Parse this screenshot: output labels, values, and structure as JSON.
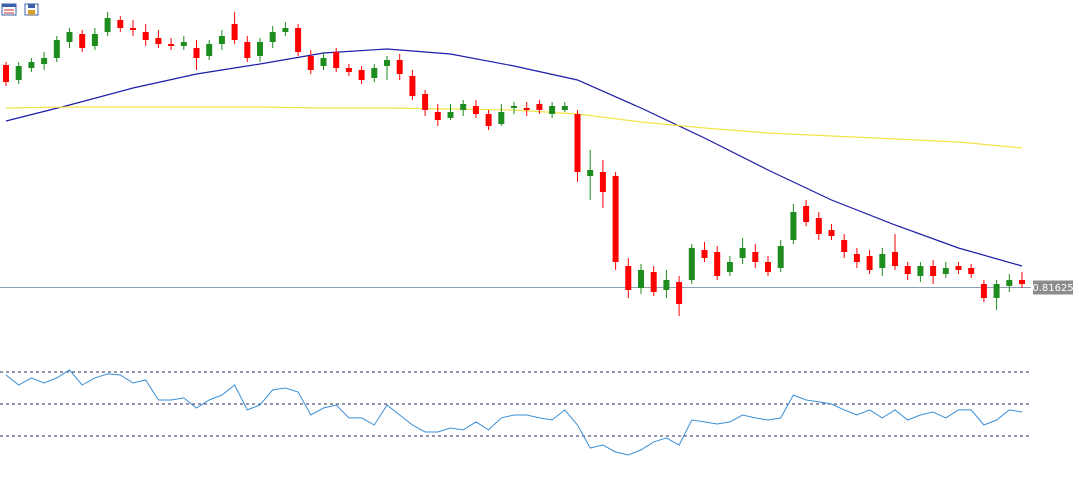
{
  "chart_data": [
    {
      "type": "candlestick",
      "up_color": "#1e8c1e",
      "down_color": "#ff0000",
      "ylim": [
        0.811,
        0.845
      ],
      "last_price": 0.81625,
      "open": [
        0.8385,
        0.837,
        0.8382,
        0.8386,
        0.8392,
        0.8408,
        0.8416,
        0.8404,
        0.8418,
        0.843,
        0.8422,
        0.8418,
        0.8412,
        0.8406,
        0.8404,
        0.8402,
        0.8394,
        0.8406,
        0.8426,
        0.8408,
        0.8394,
        0.8408,
        0.8418,
        0.8422,
        0.8394,
        0.8384,
        0.8398,
        0.8382,
        0.838,
        0.8372,
        0.8384,
        0.839,
        0.8374,
        0.8356,
        0.8338,
        0.8332,
        0.834,
        0.8344,
        0.8336,
        0.8326,
        0.8342,
        0.8342,
        0.8346,
        0.8336,
        0.834,
        0.8336,
        0.8274,
        0.8278,
        0.8274,
        0.8184,
        0.8162,
        0.8178,
        0.816,
        0.8168,
        0.817,
        0.82,
        0.8198,
        0.8178,
        0.8192,
        0.8198,
        0.8188,
        0.8182,
        0.821,
        0.8244,
        0.8232,
        0.822,
        0.821,
        0.8196,
        0.8194,
        0.8182,
        0.8198,
        0.8184,
        0.8174,
        0.8184,
        0.8176,
        0.8184,
        0.8182,
        0.8166,
        0.8152,
        0.8164,
        0.817
      ],
      "high": [
        0.8388,
        0.8388,
        0.8392,
        0.8398,
        0.8414,
        0.8422,
        0.842,
        0.8422,
        0.8438,
        0.8434,
        0.843,
        0.8426,
        0.842,
        0.8412,
        0.8414,
        0.841,
        0.841,
        0.842,
        0.8438,
        0.8414,
        0.8412,
        0.8424,
        0.8428,
        0.8426,
        0.84,
        0.8398,
        0.8402,
        0.8386,
        0.8384,
        0.8386,
        0.8394,
        0.8396,
        0.838,
        0.836,
        0.8346,
        0.8346,
        0.835,
        0.835,
        0.834,
        0.8346,
        0.8348,
        0.8348,
        0.835,
        0.8348,
        0.8348,
        0.834,
        0.83,
        0.829,
        0.8278,
        0.8192,
        0.8186,
        0.8184,
        0.818,
        0.8174,
        0.8206,
        0.8208,
        0.8204,
        0.8194,
        0.8212,
        0.8206,
        0.8194,
        0.821,
        0.8246,
        0.825,
        0.8238,
        0.8226,
        0.8216,
        0.8202,
        0.82,
        0.8202,
        0.8216,
        0.8188,
        0.8188,
        0.819,
        0.8188,
        0.8188,
        0.8186,
        0.817,
        0.817,
        0.8176,
        0.8178
      ],
      "low": [
        0.8364,
        0.8366,
        0.8378,
        0.838,
        0.8388,
        0.8402,
        0.8398,
        0.84,
        0.8414,
        0.8418,
        0.8414,
        0.8404,
        0.8402,
        0.84,
        0.84,
        0.838,
        0.839,
        0.84,
        0.8406,
        0.8388,
        0.8388,
        0.8402,
        0.8414,
        0.8394,
        0.8376,
        0.838,
        0.8378,
        0.8374,
        0.8366,
        0.8368,
        0.837,
        0.837,
        0.835,
        0.8334,
        0.8324,
        0.833,
        0.8334,
        0.8332,
        0.832,
        0.8324,
        0.8336,
        0.8334,
        0.8336,
        0.8332,
        0.8338,
        0.8268,
        0.825,
        0.8242,
        0.818,
        0.8152,
        0.8156,
        0.8154,
        0.8152,
        0.8134,
        0.8166,
        0.8188,
        0.817,
        0.8174,
        0.8186,
        0.8182,
        0.8174,
        0.8178,
        0.8206,
        0.8224,
        0.821,
        0.821,
        0.8192,
        0.8182,
        0.8176,
        0.8174,
        0.818,
        0.817,
        0.8168,
        0.8166,
        0.8172,
        0.8176,
        0.8172,
        0.8148,
        0.814,
        0.8158,
        0.8162
      ],
      "close": [
        0.8368,
        0.8384,
        0.8388,
        0.8392,
        0.841,
        0.8418,
        0.8402,
        0.8416,
        0.8432,
        0.8422,
        0.842,
        0.841,
        0.8406,
        0.8404,
        0.8408,
        0.8392,
        0.8406,
        0.8414,
        0.841,
        0.8392,
        0.8408,
        0.8418,
        0.8422,
        0.8398,
        0.838,
        0.8392,
        0.8382,
        0.8378,
        0.837,
        0.8382,
        0.839,
        0.8376,
        0.8354,
        0.834,
        0.833,
        0.8338,
        0.8346,
        0.8336,
        0.8324,
        0.8338,
        0.8344,
        0.834,
        0.834,
        0.8344,
        0.8344,
        0.8278,
        0.828,
        0.8258,
        0.8188,
        0.816,
        0.818,
        0.8158,
        0.817,
        0.8146,
        0.8202,
        0.8192,
        0.8174,
        0.8188,
        0.8202,
        0.8188,
        0.8178,
        0.8204,
        0.8238,
        0.8228,
        0.8216,
        0.8214,
        0.8198,
        0.8188,
        0.818,
        0.8196,
        0.8184,
        0.8176,
        0.8184,
        0.8174,
        0.8182,
        0.818,
        0.8176,
        0.8152,
        0.8166,
        0.817,
        0.8166
      ],
      "series": [
        {
          "color": "#1c1ca8",
          "x": [
            0,
            5,
            10,
            15,
            20,
            25,
            30,
            35,
            40,
            45,
            50,
            55,
            60,
            65,
            70,
            75,
            80
          ],
          "values": [
            0.8329,
            0.8345,
            0.8362,
            0.8376,
            0.8386,
            0.8397,
            0.8401,
            0.8396,
            0.8384,
            0.837,
            0.8342,
            0.8312,
            0.828,
            0.825,
            0.8225,
            0.8202,
            0.8184
          ]
        },
        {
          "color": "#f2e34a",
          "x": [
            0,
            5,
            10,
            15,
            20,
            25,
            30,
            35,
            40,
            45,
            50,
            55,
            60,
            65,
            70,
            75,
            80
          ],
          "values": [
            0.8342,
            0.8343,
            0.8343,
            0.8343,
            0.8343,
            0.8342,
            0.8342,
            0.8341,
            0.834,
            0.8336,
            0.8328,
            0.8322,
            0.8317,
            0.8314,
            0.8311,
            0.8308,
            0.8302
          ]
        }
      ]
    },
    {
      "type": "line",
      "color": "#3b8fd6",
      "ylim": [
        2.5,
        90
      ],
      "levels": [
        70,
        50,
        30
      ],
      "values": [
        68.1,
        61.9,
        66.3,
        63.1,
        66.3,
        71.3,
        61.9,
        66.3,
        68.8,
        68.1,
        63.1,
        65,
        52.5,
        52.5,
        53.8,
        47.5,
        52.5,
        55.6,
        61.9,
        46.3,
        49.4,
        58.8,
        60,
        57.5,
        43.1,
        47.5,
        49.4,
        41.3,
        41.3,
        36.9,
        49.4,
        43.1,
        36.9,
        32.5,
        32.5,
        35,
        33.8,
        38.8,
        33.8,
        41.3,
        43.1,
        43.1,
        41.3,
        40,
        46.3,
        36.9,
        22.5,
        24.4,
        20,
        18.1,
        21.3,
        26.3,
        28.8,
        24.4,
        40,
        38.8,
        37.5,
        38.8,
        43.1,
        41.3,
        40,
        41.3,
        55.6,
        52.5,
        51.3,
        50,
        46.3,
        43.1,
        46.3,
        41.3,
        46.3,
        40,
        43.1,
        45,
        41.3,
        46.3,
        46.3,
        36.9,
        40,
        46.3,
        45
      ]
    }
  ]
}
